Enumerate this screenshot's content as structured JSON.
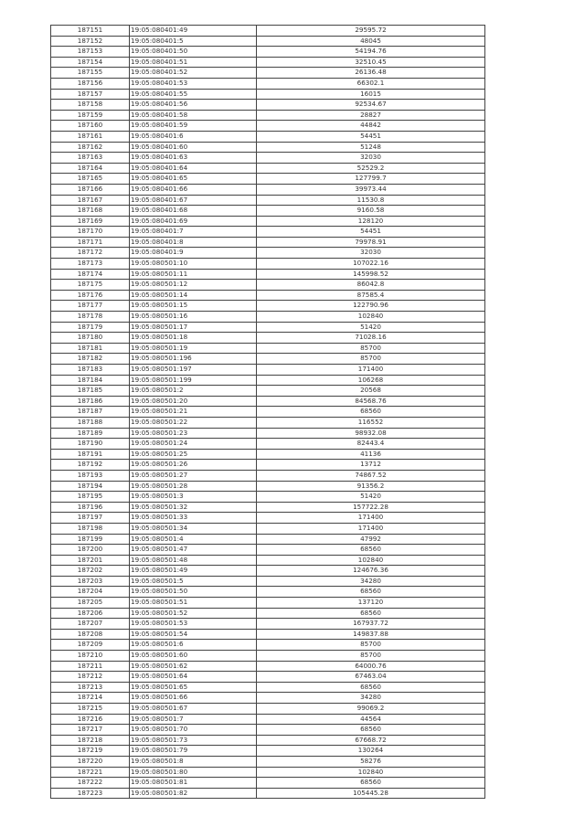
{
  "table": {
    "rows": [
      [
        "187151",
        "19:05:080401:49",
        "29595.72"
      ],
      [
        "187152",
        "19:05:080401:5",
        "48045"
      ],
      [
        "187153",
        "19:05:080401:50",
        "54194.76"
      ],
      [
        "187154",
        "19:05:080401:51",
        "32510.45"
      ],
      [
        "187155",
        "19:05:080401:52",
        "26136.48"
      ],
      [
        "187156",
        "19:05:080401:53",
        "66302.1"
      ],
      [
        "187157",
        "19:05:080401:55",
        "16015"
      ],
      [
        "187158",
        "19:05:080401:56",
        "92534.67"
      ],
      [
        "187159",
        "19:05:080401:58",
        "28827"
      ],
      [
        "187160",
        "19:05:080401:59",
        "44842"
      ],
      [
        "187161",
        "19:05:080401:6",
        "54451"
      ],
      [
        "187162",
        "19:05:080401:60",
        "51248"
      ],
      [
        "187163",
        "19:05:080401:63",
        "32030"
      ],
      [
        "187164",
        "19:05:080401:64",
        "52529.2"
      ],
      [
        "187165",
        "19:05:080401:65",
        "127799.7"
      ],
      [
        "187166",
        "19:05:080401:66",
        "39973.44"
      ],
      [
        "187167",
        "19:05:080401:67",
        "11530.8"
      ],
      [
        "187168",
        "19:05:080401:68",
        "9160.58"
      ],
      [
        "187169",
        "19:05:080401:69",
        "128120"
      ],
      [
        "187170",
        "19:05:080401:7",
        "54451"
      ],
      [
        "187171",
        "19:05:080401:8",
        "79978.91"
      ],
      [
        "187172",
        "19:05:080401:9",
        "32030"
      ],
      [
        "187173",
        "19:05:080501:10",
        "107022.16"
      ],
      [
        "187174",
        "19:05:080501:11",
        "145998.52"
      ],
      [
        "187175",
        "19:05:080501:12",
        "86042.8"
      ],
      [
        "187176",
        "19:05:080501:14",
        "87585.4"
      ],
      [
        "187177",
        "19:05:080501:15",
        "122790.96"
      ],
      [
        "187178",
        "19:05:080501:16",
        "102840"
      ],
      [
        "187179",
        "19:05:080501:17",
        "51420"
      ],
      [
        "187180",
        "19:05:080501:18",
        "71028.16"
      ],
      [
        "187181",
        "19:05:080501:19",
        "85700"
      ],
      [
        "187182",
        "19:05:080501:196",
        "85700"
      ],
      [
        "187183",
        "19:05:080501:197",
        "171400"
      ],
      [
        "187184",
        "19:05:080501:199",
        "106268"
      ],
      [
        "187185",
        "19:05:080501:2",
        "20568"
      ],
      [
        "187186",
        "19:05:080501:20",
        "84568.76"
      ],
      [
        "187187",
        "19:05:080501:21",
        "68560"
      ],
      [
        "187188",
        "19:05:080501:22",
        "116552"
      ],
      [
        "187189",
        "19:05:080501:23",
        "98932.08"
      ],
      [
        "187190",
        "19:05:080501:24",
        "82443.4"
      ],
      [
        "187191",
        "19:05:080501:25",
        "41136"
      ],
      [
        "187192",
        "19:05:080501:26",
        "13712"
      ],
      [
        "187193",
        "19:05:080501:27",
        "74867.52"
      ],
      [
        "187194",
        "19:05:080501:28",
        "91356.2"
      ],
      [
        "187195",
        "19:05:080501:3",
        "51420"
      ],
      [
        "187196",
        "19:05:080501:32",
        "157722.28"
      ],
      [
        "187197",
        "19:05:080501:33",
        "171400"
      ],
      [
        "187198",
        "19:05:080501:34",
        "171400"
      ],
      [
        "187199",
        "19:05:080501:4",
        "47992"
      ],
      [
        "187200",
        "19:05:080501:47",
        "68560"
      ],
      [
        "187201",
        "19:05:080501:48",
        "102840"
      ],
      [
        "187202",
        "19:05:080501:49",
        "124676.36"
      ],
      [
        "187203",
        "19:05:080501:5",
        "34280"
      ],
      [
        "187204",
        "19:05:080501:50",
        "68560"
      ],
      [
        "187205",
        "19:05:080501:51",
        "137120"
      ],
      [
        "187206",
        "19:05:080501:52",
        "68560"
      ],
      [
        "187207",
        "19:05:080501:53",
        "167937.72"
      ],
      [
        "187208",
        "19:05:080501:54",
        "149837.88"
      ],
      [
        "187209",
        "19:05:080501:6",
        "85700"
      ],
      [
        "187210",
        "19:05:080501:60",
        "85700"
      ],
      [
        "187211",
        "19:05:080501:62",
        "64000.76"
      ],
      [
        "187212",
        "19:05:080501:64",
        "67463.04"
      ],
      [
        "187213",
        "19:05:080501:65",
        "68560"
      ],
      [
        "187214",
        "19:05:080501:66",
        "34280"
      ],
      [
        "187215",
        "19:05:080501:67",
        "99069.2"
      ],
      [
        "187216",
        "19:05:080501:7",
        "44564"
      ],
      [
        "187217",
        "19:05:080501:70",
        "68560"
      ],
      [
        "187218",
        "19:05:080501:73",
        "67668.72"
      ],
      [
        "187219",
        "19:05:080501:79",
        "130264"
      ],
      [
        "187220",
        "19:05:080501:8",
        "58276"
      ],
      [
        "187221",
        "19:05:080501:80",
        "102840"
      ],
      [
        "187222",
        "19:05:080501:81",
        "68560"
      ],
      [
        "187223",
        "19:05:080501:82",
        "105445.28"
      ]
    ]
  }
}
